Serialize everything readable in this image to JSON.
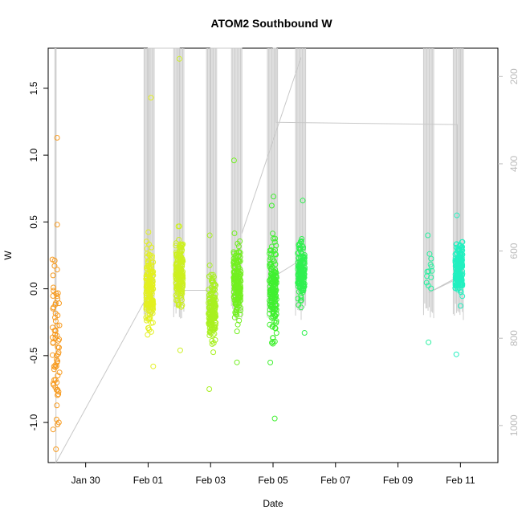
{
  "chart_data": {
    "type": "scatter",
    "title": "ATOM2 Southbound W",
    "xlabel": "Date",
    "ylabel": "W",
    "x_ticks": [
      "Jan 30",
      "Feb 01",
      "Feb 03",
      "Feb 05",
      "Feb 07",
      "Feb 09",
      "Feb 11"
    ],
    "x_tick_days": [
      30,
      32,
      34,
      36,
      38,
      40,
      42
    ],
    "y_ticks": [
      -1.0,
      -0.5,
      0.0,
      0.5,
      1.0,
      1.5
    ],
    "y_tick_labels": [
      "-1.0",
      "-0.5",
      "0.0",
      "0.5",
      "1.0",
      "1.5"
    ],
    "ylim": [
      -1.3,
      1.8
    ],
    "xlim_days": [
      28.8,
      43.2
    ],
    "secondary_axis": {
      "label": "",
      "ticks": [
        200,
        400,
        600,
        800,
        1000
      ],
      "reversed": true,
      "range": [
        135,
        1085
      ],
      "color": "#bbbbbb"
    },
    "point_colors": [
      "#f79a1e",
      "#e3f020",
      "#b8f020",
      "#6cf020",
      "#3cf04a",
      "#26f07e",
      "#24f0b8"
    ],
    "casts": [
      {
        "day": 29.05,
        "color": "#f79a1e",
        "n": 70,
        "ymin": -1.2,
        "ymax": 1.13,
        "center": -0.4,
        "spread": 0.45
      },
      {
        "day": 32.05,
        "color": "#e3f020",
        "n": 160,
        "ymin": -0.58,
        "ymax": 1.43,
        "center": 0.0,
        "spread": 0.2
      },
      {
        "day": 33.0,
        "color": "#cdf020",
        "n": 160,
        "ymin": -0.46,
        "ymax": 1.72,
        "center": 0.1,
        "spread": 0.18
      },
      {
        "day": 34.05,
        "color": "#a8f020",
        "n": 150,
        "ymin": -0.75,
        "ymax": 0.4,
        "center": -0.15,
        "spread": 0.18
      },
      {
        "day": 34.85,
        "color": "#72f020",
        "n": 160,
        "ymin": -0.55,
        "ymax": 0.96,
        "center": 0.05,
        "spread": 0.2
      },
      {
        "day": 36.0,
        "color": "#40f030",
        "n": 170,
        "ymin": -0.97,
        "ymax": 0.69,
        "center": 0.0,
        "spread": 0.25
      },
      {
        "day": 36.9,
        "color": "#30f050",
        "n": 150,
        "ymin": -0.33,
        "ymax": 0.66,
        "center": 0.15,
        "spread": 0.15
      },
      {
        "day": 41.0,
        "color": "#28f0a0",
        "n": 14,
        "ymin": -0.4,
        "ymax": 0.4,
        "center": 0.1,
        "spread": 0.15
      },
      {
        "day": 41.95,
        "color": "#22f0c0",
        "n": 180,
        "ymin": -0.49,
        "ymax": 0.55,
        "center": 0.15,
        "spread": 0.13
      }
    ],
    "track_path": [
      {
        "day": 29.05,
        "depth": 135
      },
      {
        "day": 29.05,
        "depth": 1085
      },
      {
        "day": 32.0,
        "depth": 700
      },
      {
        "day": 32.0,
        "depth": 135
      },
      {
        "day": 33.0,
        "depth": 135
      },
      {
        "day": 33.0,
        "depth": 690
      },
      {
        "day": 34.0,
        "depth": 690
      },
      {
        "day": 34.0,
        "depth": 135
      },
      {
        "day": 35.0,
        "depth": 135
      },
      {
        "day": 35.0,
        "depth": 560
      },
      {
        "day": 36.9,
        "depth": 155
      },
      {
        "day": 36.9,
        "depth": 620
      },
      {
        "day": 36.0,
        "depth": 660
      },
      {
        "day": 36.0,
        "depth": 135
      },
      {
        "day": 36.1,
        "depth": 135
      },
      {
        "day": 36.1,
        "depth": 305
      },
      {
        "day": 41.9,
        "depth": 310
      },
      {
        "day": 41.9,
        "depth": 660
      },
      {
        "day": 41.0,
        "depth": 695
      },
      {
        "day": 41.0,
        "depth": 570
      },
      {
        "day": 41.0,
        "depth": 695
      },
      {
        "day": 42.0,
        "depth": 660
      },
      {
        "day": 42.0,
        "depth": 135
      }
    ],
    "grid": false,
    "legend": "none"
  }
}
